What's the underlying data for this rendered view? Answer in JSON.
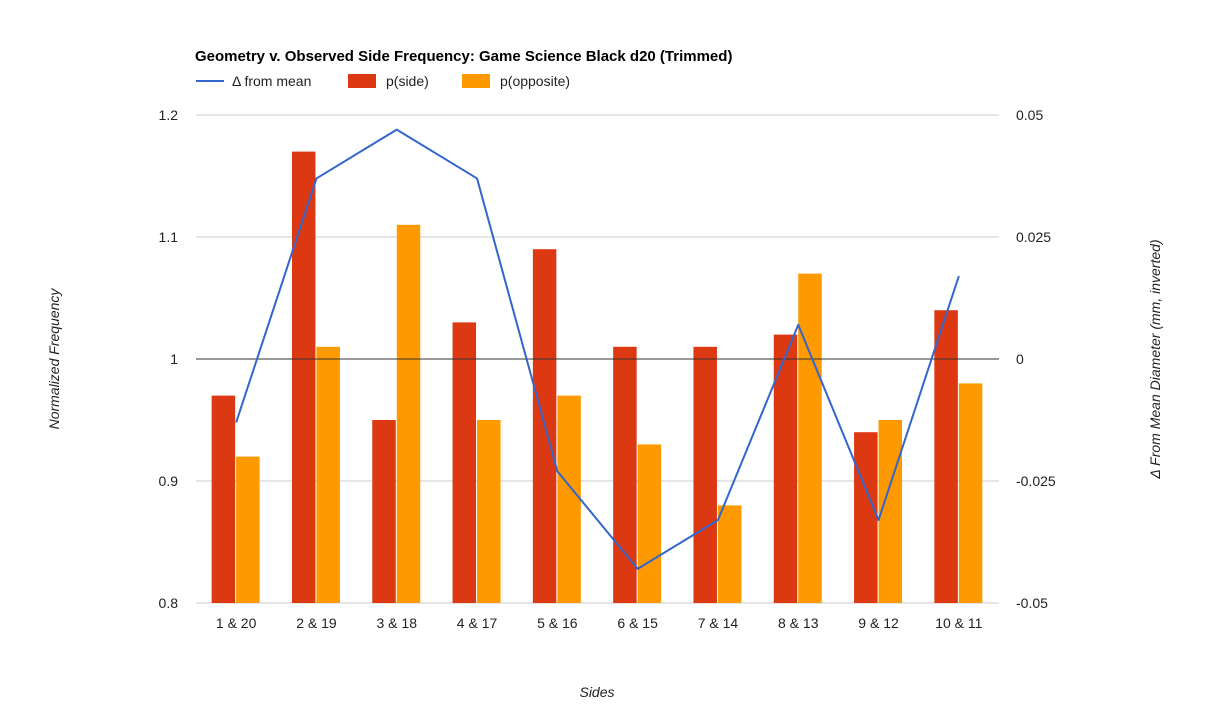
{
  "chart_data": {
    "type": "bar",
    "title": "Geometry v. Observed Side Frequency: Game Science Black d20 (Trimmed)",
    "categories": [
      "1 & 20",
      "2 & 19",
      "3 & 18",
      "4 & 17",
      "5 & 16",
      "6 & 15",
      "7 & 14",
      "8 & 13",
      "9 & 12",
      "10 & 11"
    ],
    "series": [
      {
        "name": "p(side)",
        "kind": "bar",
        "axis": "left",
        "color": "#dc3912",
        "values": [
          0.97,
          1.17,
          0.95,
          1.03,
          1.09,
          1.01,
          1.01,
          1.02,
          0.94,
          1.04
        ]
      },
      {
        "name": "p(opposite)",
        "kind": "bar",
        "axis": "left",
        "color": "#ff9900",
        "values": [
          0.92,
          1.01,
          1.11,
          0.95,
          0.97,
          0.93,
          0.88,
          1.07,
          0.95,
          0.98
        ]
      },
      {
        "name": "Δ from mean",
        "kind": "line",
        "axis": "right",
        "color": "#3366cc",
        "values": [
          -0.013,
          0.037,
          0.047,
          0.037,
          -0.023,
          -0.043,
          -0.033,
          0.007,
          -0.033,
          0.017
        ]
      }
    ],
    "legend_order": [
      "Δ from mean",
      "p(side)",
      "p(opposite)"
    ],
    "legend_position": "top-left",
    "xlabel": "Sides",
    "ylabel": "Normalized Frequency",
    "y2label": "Δ From Mean Diameter (mm, inverted)",
    "ylim": [
      0.8,
      1.2
    ],
    "y_ticks": [
      1.2,
      1.1,
      1,
      0.9,
      0.8
    ],
    "y_tick_labels": [
      "1.2",
      "1.1",
      "1",
      "0.9",
      "0.8"
    ],
    "y2lim": [
      -0.05,
      0.05
    ],
    "y2_ticks": [
      0.05,
      0.025,
      0,
      -0.025,
      -0.05
    ],
    "y2_tick_labels": [
      "0.05",
      "0.025",
      "0",
      "-0.025",
      "-0.05"
    ],
    "baseline": 1,
    "grid": true,
    "grid_color": "#cccccc",
    "baseline_color": "#333333"
  }
}
